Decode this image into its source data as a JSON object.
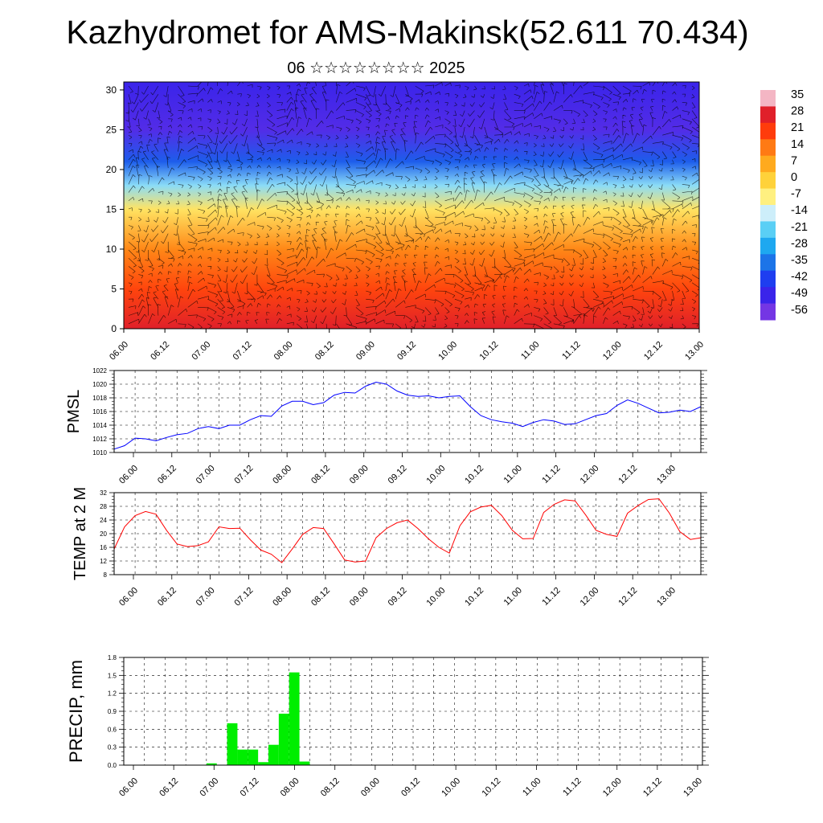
{
  "title": "Kazhydromet for AMS-Makinsk(52.611 70.434)",
  "subtitle": "06 ☆☆☆☆☆☆☆☆ 2025",
  "time_labels": [
    "06.00",
    "06.12",
    "07.00",
    "07.12",
    "08.00",
    "08.12",
    "09.00",
    "09.12",
    "10.00",
    "10.12",
    "11.00",
    "11.12",
    "12.00",
    "12.12",
    "13.00"
  ],
  "colorbar": {
    "labels": [
      "35",
      "28",
      "21",
      "14",
      "7",
      "0",
      "-7",
      "-14",
      "-21",
      "-28",
      "-35",
      "-42",
      "-49",
      "-56"
    ],
    "colors": [
      "#f4b6c4",
      "#e0202a",
      "#ff3c0c",
      "#ff7a14",
      "#ffaa1e",
      "#ffd23a",
      "#fff080",
      "#cdeefa",
      "#5acff5",
      "#1ea8f0",
      "#1c74e8",
      "#1e3ef0",
      "#3a24ea",
      "#7436e4"
    ]
  },
  "chart_data": [
    {
      "type": "heatmap",
      "xlabel": "",
      "ylabel": "",
      "yticks": [
        0,
        5,
        10,
        15,
        20,
        25,
        30
      ],
      "ylim": [
        0,
        31
      ],
      "x": [
        "06.00",
        "06.12",
        "07.00",
        "07.12",
        "08.00",
        "08.12",
        "09.00",
        "09.12",
        "10.00",
        "10.12",
        "11.00",
        "11.12",
        "12.00",
        "12.12",
        "13.00"
      ],
      "temperature_by_level": [
        {
          "level": 0,
          "value": 28
        },
        {
          "level": 5,
          "value": 20
        },
        {
          "level": 10,
          "value": 12
        },
        {
          "level": 15,
          "value": -4
        },
        {
          "level": 18,
          "value": -18
        },
        {
          "level": 21,
          "value": -38
        },
        {
          "level": 25,
          "value": -52
        },
        {
          "level": 31,
          "value": -49
        }
      ],
      "overlay": "wind-barbs"
    },
    {
      "type": "line",
      "ylabel": "PMSL",
      "ylim": [
        1010,
        1022
      ],
      "yticks": [
        1010,
        1012,
        1014,
        1016,
        1018,
        1020,
        1022
      ],
      "color": "#0000ff",
      "x_step_hours": 3,
      "values": [
        1010.5,
        1011.0,
        1012.1,
        1012.0,
        1011.7,
        1012.2,
        1012.6,
        1012.8,
        1013.5,
        1013.8,
        1013.5,
        1014.0,
        1014.0,
        1014.8,
        1015.4,
        1015.3,
        1016.8,
        1017.5,
        1017.5,
        1017.0,
        1017.3,
        1018.4,
        1018.8,
        1018.7,
        1019.7,
        1020.3,
        1020.0,
        1019.0,
        1018.4,
        1018.2,
        1018.3,
        1018.0,
        1018.2,
        1018.3,
        1016.7,
        1015.4,
        1014.8,
        1014.5,
        1014.3,
        1013.8,
        1014.4,
        1014.8,
        1014.6,
        1014.1,
        1014.2,
        1014.8,
        1015.4,
        1015.7,
        1016.9,
        1017.7,
        1017.2,
        1016.5,
        1015.8,
        1015.9,
        1016.2,
        1016.0,
        1016.7
      ]
    },
    {
      "type": "line",
      "ylabel": "TEMP at 2 M",
      "ylim": [
        8,
        32
      ],
      "yticks": [
        8,
        12,
        16,
        20,
        24,
        28,
        32
      ],
      "color": "#ff0000",
      "x_step_hours": 3,
      "values": [
        15.5,
        22.0,
        25.3,
        26.5,
        25.7,
        21.0,
        17.0,
        16.2,
        16.5,
        17.6,
        22.0,
        21.5,
        21.6,
        18.2,
        15.2,
        14.0,
        11.5,
        15.5,
        19.8,
        21.8,
        21.5,
        17.0,
        12.3,
        11.7,
        12.0,
        18.8,
        21.5,
        23.2,
        24.0,
        21.5,
        18.5,
        16.0,
        14.3,
        22.3,
        26.4,
        27.8,
        28.3,
        25.3,
        21.0,
        18.5,
        18.6,
        26.2,
        28.6,
        29.9,
        29.6,
        25.5,
        21.0,
        19.8,
        19.2,
        26.0,
        28.2,
        30.0,
        30.2,
        26.0,
        20.6,
        18.3,
        18.8
      ]
    },
    {
      "type": "bar",
      "ylabel": "PRECIP, mm",
      "ylim": [
        0,
        1.8
      ],
      "yticks": [
        0.0,
        0.3,
        0.6,
        0.9,
        1.2,
        1.5,
        1.8
      ],
      "color": "#00ee00",
      "x_step_hours": 3,
      "values": [
        0,
        0,
        0,
        0,
        0,
        0,
        0,
        0,
        0.03,
        0,
        0.7,
        0.26,
        0.26,
        0.05,
        0.34,
        0.86,
        1.55,
        0.06,
        0,
        0,
        0,
        0,
        0,
        0,
        0,
        0,
        0,
        0,
        0,
        0,
        0,
        0,
        0,
        0,
        0,
        0,
        0,
        0,
        0,
        0,
        0,
        0,
        0,
        0,
        0,
        0,
        0,
        0,
        0,
        0,
        0,
        0,
        0,
        0,
        0,
        0
      ]
    }
  ]
}
